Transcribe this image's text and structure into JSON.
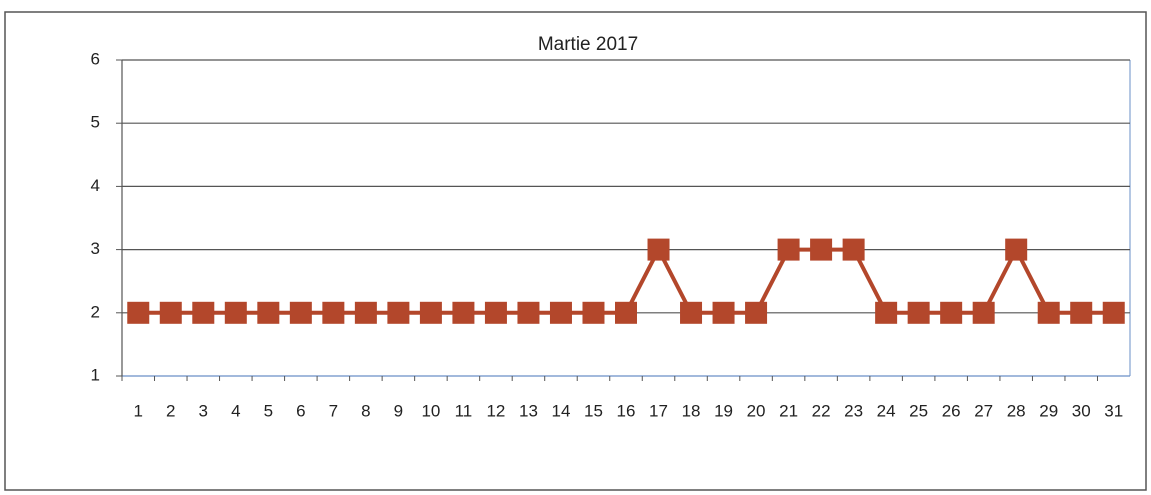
{
  "chart_data": {
    "type": "line",
    "title": "Martie 2017",
    "categories": [
      "1",
      "2",
      "3",
      "4",
      "5",
      "6",
      "7",
      "8",
      "9",
      "10",
      "11",
      "12",
      "13",
      "14",
      "15",
      "16",
      "17",
      "18",
      "19",
      "20",
      "21",
      "22",
      "23",
      "24",
      "25",
      "26",
      "27",
      "28",
      "29",
      "30",
      "31"
    ],
    "series": [
      {
        "color": "#b3472b",
        "values": [
          2,
          2,
          2,
          2,
          2,
          2,
          2,
          2,
          2,
          2,
          2,
          2,
          2,
          2,
          2,
          2,
          3,
          2,
          2,
          2,
          3,
          3,
          3,
          2,
          2,
          2,
          2,
          3,
          2,
          2,
          2
        ]
      }
    ],
    "ylim": [
      1,
      6
    ],
    "yticks": [
      1,
      2,
      3,
      4,
      5,
      6
    ],
    "grid": true
  }
}
